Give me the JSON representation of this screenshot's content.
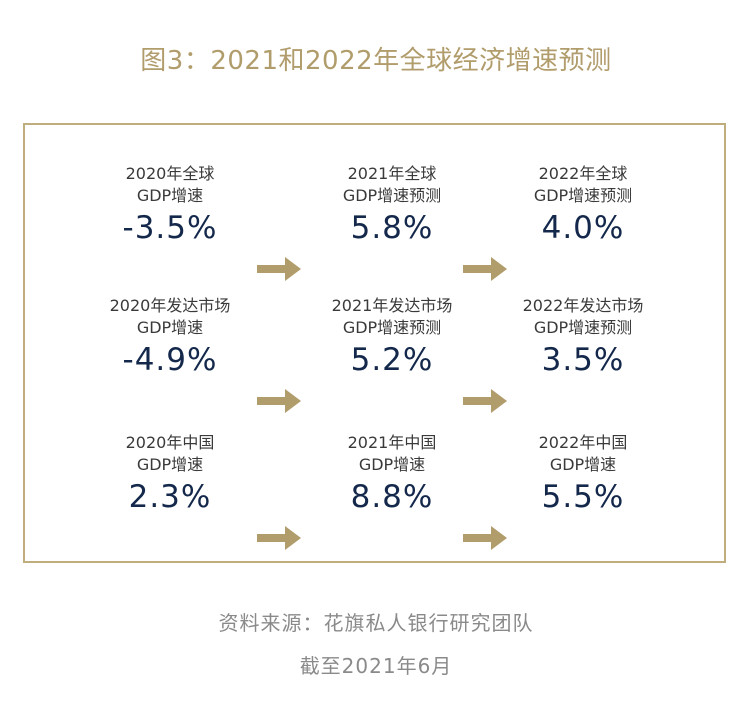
{
  "title": "图3：2021和2022年全球经济增速预测",
  "colors": {
    "title": "#b19c6b",
    "border": "#c0ad7d",
    "arrow": "#b19c6b",
    "value": "#14284b",
    "label": "#3a3a3a",
    "source": "#8a8a8a"
  },
  "chart_data": {
    "type": "table",
    "rows": [
      {
        "cells": [
          {
            "label": "2020年全球\nGDP增速",
            "value": "-3.5%"
          },
          {
            "label": "2021年全球\nGDP增速预测",
            "value": "5.8%"
          },
          {
            "label": "2022年全球\nGDP增速预测",
            "value": "4.0%"
          }
        ]
      },
      {
        "cells": [
          {
            "label": "2020年发达市场\nGDP增速",
            "value": "-4.9%"
          },
          {
            "label": "2021年发达市场\nGDP增速预测",
            "value": "5.2%"
          },
          {
            "label": "2022年发达市场\nGDP增速预测",
            "value": "3.5%"
          }
        ]
      },
      {
        "cells": [
          {
            "label": "2020年中国\nGDP增速",
            "value": "2.3%"
          },
          {
            "label": "2021年中国\nGDP增速",
            "value": "8.8%"
          },
          {
            "label": "2022年中国\nGDP增速",
            "value": "5.5%"
          }
        ]
      }
    ]
  },
  "source": {
    "line1": "资料来源：花旗私人银行研究团队",
    "line2": "截至2021年6月"
  }
}
